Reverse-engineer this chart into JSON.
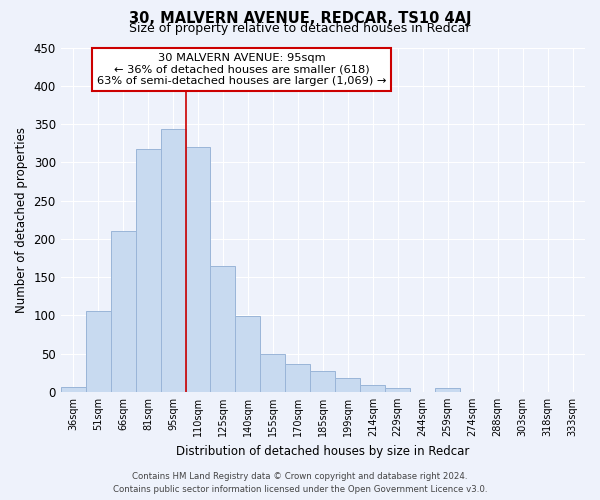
{
  "title": "30, MALVERN AVENUE, REDCAR, TS10 4AJ",
  "subtitle": "Size of property relative to detached houses in Redcar",
  "xlabel": "Distribution of detached houses by size in Redcar",
  "ylabel": "Number of detached properties",
  "bar_labels": [
    "36sqm",
    "51sqm",
    "66sqm",
    "81sqm",
    "95sqm",
    "110sqm",
    "125sqm",
    "140sqm",
    "155sqm",
    "170sqm",
    "185sqm",
    "199sqm",
    "214sqm",
    "229sqm",
    "244sqm",
    "259sqm",
    "274sqm",
    "288sqm",
    "303sqm",
    "318sqm",
    "333sqm"
  ],
  "bar_values": [
    7,
    106,
    210,
    317,
    343,
    320,
    165,
    99,
    50,
    36,
    27,
    18,
    9,
    5,
    0,
    5,
    0,
    0,
    0,
    0,
    0
  ],
  "bar_color": "#c8daf0",
  "bar_edge_color": "#9ab5d8",
  "vline_index": 4,
  "vline_color": "#cc0000",
  "ylim": [
    0,
    450
  ],
  "yticks": [
    0,
    50,
    100,
    150,
    200,
    250,
    300,
    350,
    400,
    450
  ],
  "annotation_title": "30 MALVERN AVENUE: 95sqm",
  "annotation_line1": "← 36% of detached houses are smaller (618)",
  "annotation_line2": "63% of semi-detached houses are larger (1,069) →",
  "annotation_box_color": "#ffffff",
  "annotation_border_color": "#cc0000",
  "footer_line1": "Contains HM Land Registry data © Crown copyright and database right 2024.",
  "footer_line2": "Contains public sector information licensed under the Open Government Licence v3.0.",
  "bg_color": "#eef2fb",
  "grid_color": "#ffffff"
}
